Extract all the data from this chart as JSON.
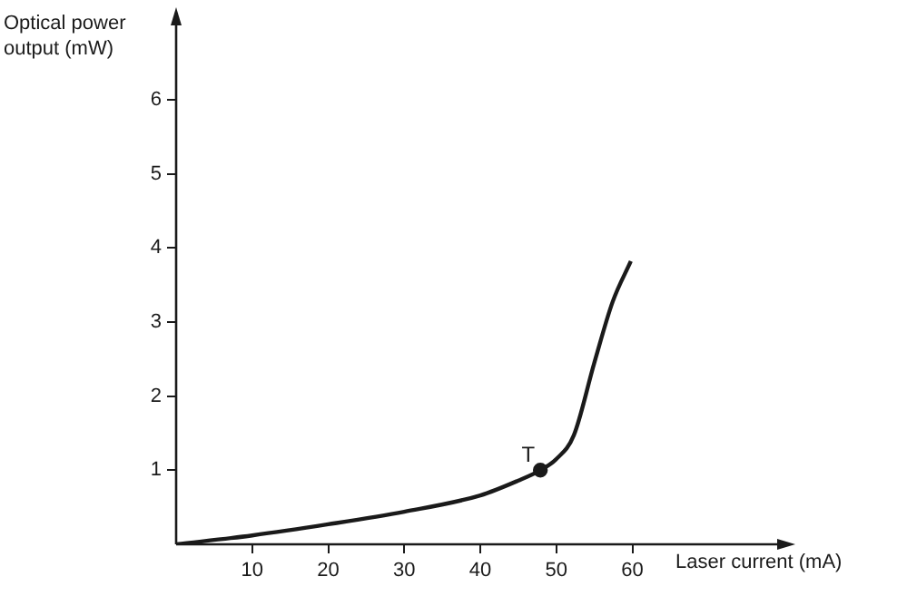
{
  "chart_data": {
    "type": "line",
    "xlabel": "Laser current (mA)",
    "ylabel": "Optical power output (mW)",
    "xlim": [
      0,
      80
    ],
    "ylim": [
      0,
      7.1
    ],
    "xticks": [
      10,
      20,
      30,
      40,
      50,
      60
    ],
    "yticks": [
      1,
      2,
      3,
      4,
      5,
      6
    ],
    "grid": false,
    "legend": false,
    "series": [
      {
        "marker": "none",
        "color": "#1a1a1a",
        "x": [
          0,
          10,
          20,
          30,
          40,
          45,
          47.9,
          50,
          52.3,
          55,
          57.4,
          59.8
        ],
        "values": [
          0,
          0.12,
          0.27,
          0.44,
          0.66,
          0.86,
          1.0,
          1.15,
          1.47,
          2.45,
          3.27,
          3.82
        ]
      },
      {
        "type": "scatter",
        "marker": "circle",
        "color": "#1a1a1a",
        "x": [
          47.9
        ],
        "values": [
          1.0
        ]
      }
    ],
    "annotations": [
      {
        "text": "T",
        "x": 47.9,
        "y": 1.0
      }
    ]
  }
}
